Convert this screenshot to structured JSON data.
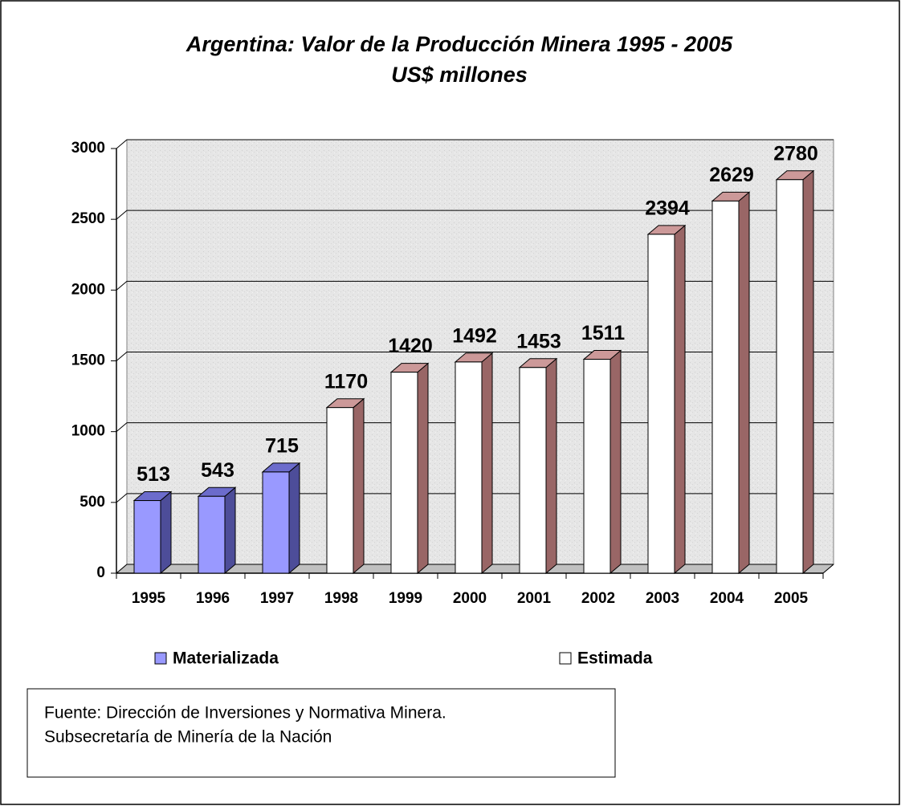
{
  "chart_data": {
    "type": "bar3d",
    "title": "Argentina: Valor de la Producción Minera 1995 - 2005",
    "subtitle": "US$ millones",
    "categories": [
      "1995",
      "1996",
      "1997",
      "1998",
      "1999",
      "2000",
      "2001",
      "2002",
      "2003",
      "2004",
      "2005"
    ],
    "series": [
      {
        "name": "Materializada",
        "color": "#9999ff",
        "side_color": "#4d4d99",
        "top_color": "#6c6ccc",
        "values": [
          513,
          543,
          715,
          null,
          null,
          null,
          null,
          null,
          null,
          null,
          null
        ]
      },
      {
        "name": "Estimada",
        "color": "#ffffff",
        "side_color": "#996666",
        "top_color": "#cc9999",
        "values": [
          null,
          null,
          null,
          1170,
          1420,
          1492,
          1453,
          1511,
          2394,
          2629,
          2780
        ]
      }
    ],
    "ylim": [
      0,
      3000
    ],
    "yticks": [
      0,
      500,
      1000,
      1500,
      2000,
      2500,
      3000
    ],
    "grid": true,
    "legend": "bottom",
    "source": [
      "Fuente: Dirección de Inversiones y Normativa Minera.",
      "Subsecretaría de Minería de la Nación"
    ]
  }
}
